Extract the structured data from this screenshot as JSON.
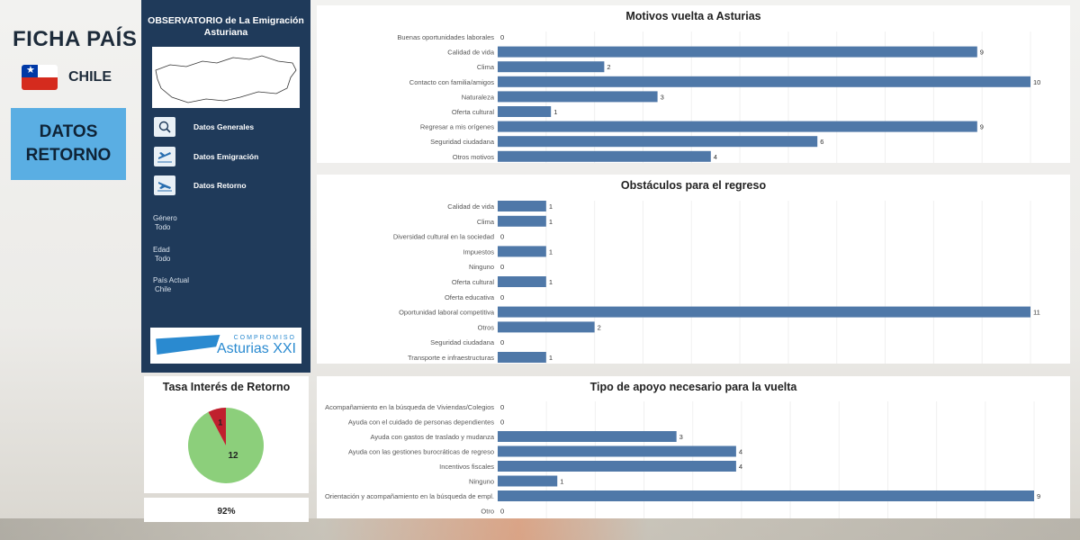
{
  "header": {
    "title": "FICHA PAÍS",
    "country": "CHILE",
    "section_button": "DATOS RETORNO"
  },
  "sidebar": {
    "title": "OBSERVATORIO de La Emigración Asturiana",
    "nav": [
      {
        "label": "Datos Generales",
        "icon": "globe-magnifier-icon"
      },
      {
        "label": "Datos Emigración",
        "icon": "plane-takeoff-icon"
      },
      {
        "label": "Datos Retorno",
        "icon": "plane-landing-icon"
      }
    ],
    "filters": [
      {
        "label": "Género",
        "value": "Todo"
      },
      {
        "label": "Edad",
        "value": "Todo"
      },
      {
        "label": "País Actual",
        "value": "Chile"
      }
    ],
    "logo": {
      "top": "COMPROMISO",
      "bottom": "Asturias XXI"
    }
  },
  "colors": {
    "bar": "#4f78a8",
    "pie_yes": "#8ccf7b",
    "pie_no": "#c0202e",
    "sidebar": "#1f3a5a",
    "accent": "#5aaee3"
  },
  "pie": {
    "title": "Tasa Interés de Retorno",
    "percent_label": "92%"
  },
  "chart_data": [
    {
      "type": "bar",
      "orientation": "horizontal",
      "title": "Motivos vuelta a Asturias",
      "categories": [
        "Buenas oportunidades laborales",
        "Calidad de vida",
        "Clima",
        "Contacto con familia/amigos",
        "Naturaleza",
        "Oferta cultural",
        "Regresar a mis orígenes",
        "Seguridad ciudadana",
        "Otros motivos"
      ],
      "values": [
        0,
        9,
        2,
        10,
        3,
        1,
        9,
        6,
        4
      ],
      "xlim": [
        0,
        10
      ]
    },
    {
      "type": "bar",
      "orientation": "horizontal",
      "title": "Obstáculos para el regreso",
      "categories": [
        "Calidad de vida",
        "Clima",
        "Diversidad cultural en la sociedad",
        "Impuestos",
        "Ninguno",
        "Oferta cultural",
        "Oferta educativa",
        "Oportunidad laboral competitiva",
        "Otros",
        "Seguridad ciudadana",
        "Transporte e infraestructuras"
      ],
      "values": [
        1,
        1,
        0,
        1,
        0,
        1,
        0,
        11,
        2,
        0,
        1
      ],
      "xlim": [
        0,
        11
      ]
    },
    {
      "type": "bar",
      "orientation": "horizontal",
      "title": "Tipo de apoyo necesario para la vuelta",
      "categories": [
        "Acompañamiento en la búsqueda de Viviendas/Colegios",
        "Ayuda con el cuidado de personas dependientes",
        "Ayuda con gastos de traslado y mudanza",
        "Ayuda con las gestiones burocráticas de regreso",
        "Incentivos fiscales",
        "Ninguno",
        "Orientación y acompañamiento en la búsqueda de empl.",
        "Otro"
      ],
      "values": [
        0,
        0,
        3,
        4,
        4,
        1,
        9,
        0
      ],
      "xlim": [
        0,
        9
      ]
    },
    {
      "type": "pie",
      "title": "Tasa Interés de Retorno",
      "slices": [
        {
          "value": 12
        },
        {
          "value": 1
        }
      ]
    }
  ]
}
